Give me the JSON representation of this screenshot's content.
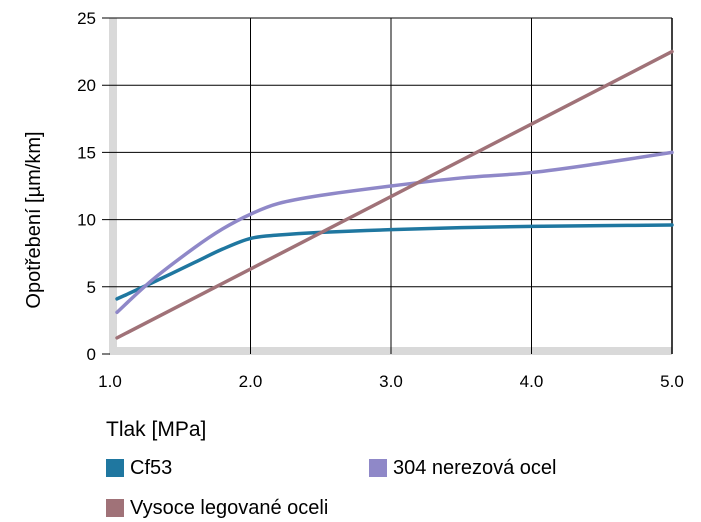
{
  "chart_data": {
    "type": "line",
    "title": "",
    "xlabel": "Tlak [MPa]",
    "ylabel": "Opotřebení [µm/km]",
    "xlim": [
      1.0,
      5.0
    ],
    "ylim": [
      0,
      25
    ],
    "x_ticks": [
      "1.0",
      "2.0",
      "3.0",
      "4.0",
      "5.0"
    ],
    "y_ticks": [
      "0",
      "5",
      "10",
      "15",
      "20",
      "25"
    ],
    "grid": true,
    "legend_position": "bottom",
    "series": [
      {
        "name": "Cf53",
        "color": "#1f77a0",
        "points": [
          [
            1.05,
            4.1
          ],
          [
            1.3,
            5.3
          ],
          [
            1.6,
            6.8
          ],
          [
            1.8,
            7.8
          ],
          [
            2.0,
            8.6
          ],
          [
            2.2,
            8.85
          ],
          [
            2.5,
            9.05
          ],
          [
            3.0,
            9.25
          ],
          [
            3.5,
            9.4
          ],
          [
            4.0,
            9.5
          ],
          [
            4.5,
            9.55
          ],
          [
            5.0,
            9.6
          ]
        ]
      },
      {
        "name": "304 nerezová ocel",
        "color": "#8f88c8",
        "points": [
          [
            1.05,
            3.1
          ],
          [
            1.3,
            5.5
          ],
          [
            1.6,
            7.9
          ],
          [
            1.8,
            9.3
          ],
          [
            2.0,
            10.4
          ],
          [
            2.2,
            11.2
          ],
          [
            2.5,
            11.8
          ],
          [
            3.0,
            12.5
          ],
          [
            3.5,
            13.1
          ],
          [
            4.0,
            13.5
          ],
          [
            4.5,
            14.2
          ],
          [
            5.0,
            15.0
          ]
        ]
      },
      {
        "name": "Vysoce legované oceli",
        "color": "#a07278",
        "points": [
          [
            1.05,
            1.2
          ],
          [
            5.0,
            22.5
          ]
        ]
      }
    ]
  }
}
